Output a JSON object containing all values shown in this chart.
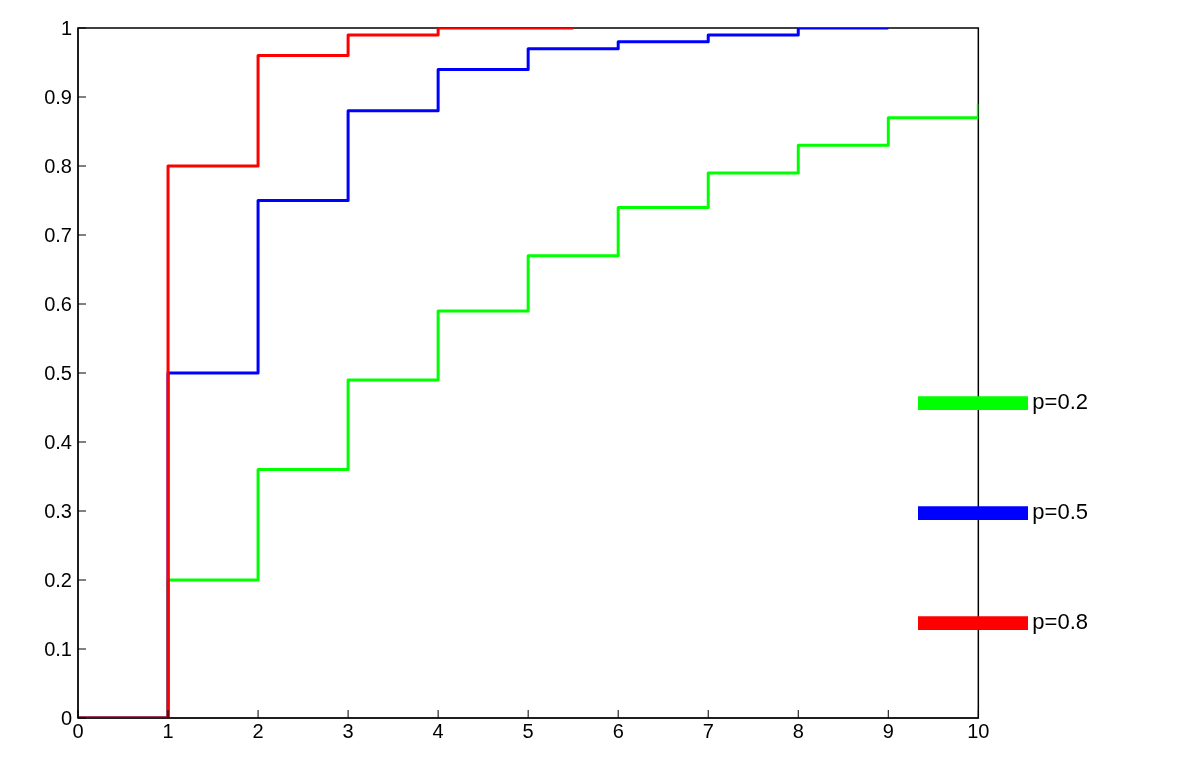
{
  "chart_data": {
    "type": "step",
    "xlim": [
      0,
      10
    ],
    "xticks": [
      0,
      1,
      2,
      3,
      4,
      5,
      6,
      7,
      8,
      9,
      10
    ],
    "ylim": [
      0,
      1
    ],
    "yticks": [
      0,
      0.1,
      0.2,
      0.3,
      0.4,
      0.5,
      0.6,
      0.7,
      0.8,
      0.9,
      1
    ],
    "grid": false,
    "legend": "bottom right",
    "marker": "none",
    "line_style": "solid",
    "series": [
      {
        "name": "p=0.2",
        "color": "#00ff00",
        "x": [
          0,
          1,
          2,
          3,
          4,
          5,
          6,
          7,
          8,
          9,
          10
        ],
        "values": [
          0,
          0.2,
          0.36,
          0.49,
          0.59,
          0.67,
          0.74,
          0.79,
          0.83,
          0.87,
          0.89
        ]
      },
      {
        "name": "p=0.5",
        "color": "#0000ff",
        "x": [
          0,
          1,
          2,
          3,
          4,
          5,
          6,
          7,
          8,
          9
        ],
        "values": [
          0,
          0.5,
          0.75,
          0.88,
          0.94,
          0.97,
          0.98,
          0.99,
          1,
          1
        ]
      },
      {
        "name": "p=0.8",
        "color": "#ff0000",
        "x": [
          0,
          1,
          2,
          3,
          4,
          5,
          5.5
        ],
        "values": [
          0,
          0.8,
          0.96,
          0.99,
          1,
          1,
          1
        ]
      }
    ]
  }
}
